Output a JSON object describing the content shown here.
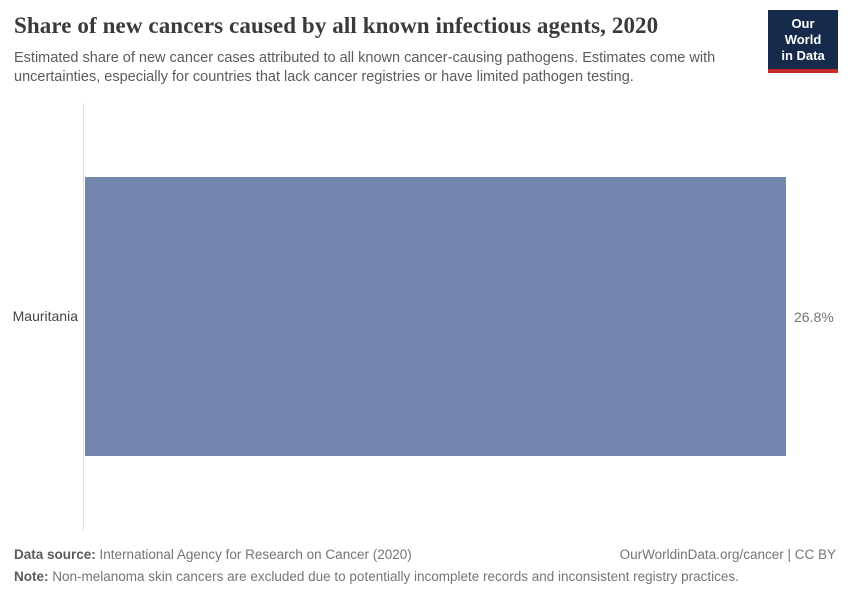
{
  "header": {
    "title": "Share of new cancers caused by all known infectious agents, 2020",
    "subtitle": "Estimated share of new cancer cases attributed to all known cancer-causing pathogens. Estimates come with uncertainties, especially for countries that lack cancer registries or have limited pathogen testing.",
    "logo": {
      "line1": "Our World",
      "line2": "in Data",
      "bg_color": "#162a4b",
      "accent_color": "#c5292a"
    }
  },
  "chart_data": {
    "type": "bar",
    "orientation": "horizontal",
    "title": "Share of new cancers caused by all known infectious agents, 2020",
    "categories": [
      "Mauritania"
    ],
    "values": [
      26.8
    ],
    "value_labels": [
      "26.8%"
    ],
    "xlabel": "",
    "ylabel": "",
    "xlim": [
      0,
      26.8
    ],
    "grid": false,
    "legend": false,
    "bar_color": "#7185ad",
    "axis_line_color": "#dedede"
  },
  "footer": {
    "data_source_label": "Data source:",
    "data_source": "International Agency for Research on Cancer (2020)",
    "license_text": "OurWorldinData.org/cancer | CC BY",
    "note_label": "Note:",
    "note": "Non-melanoma skin cancers are excluded due to potentially incomplete records and inconsistent registry practices."
  }
}
